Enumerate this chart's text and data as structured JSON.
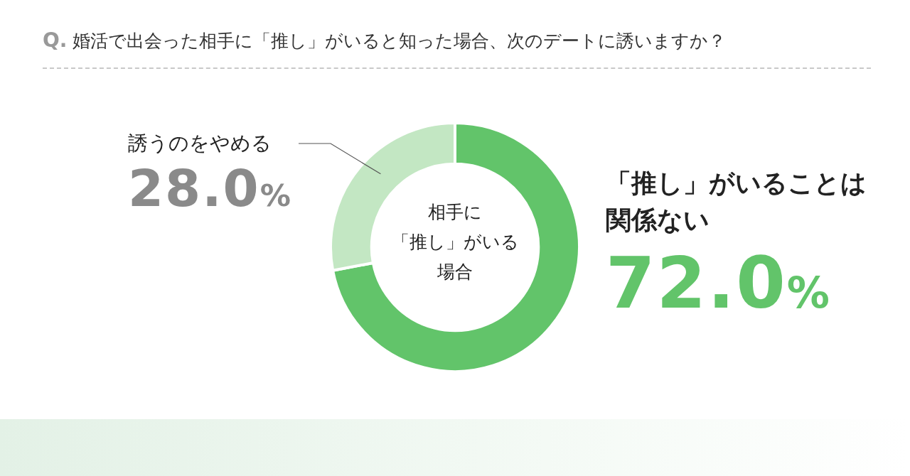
{
  "chart_data": {
    "type": "donut",
    "title": "Q. 婚活で出会った相手に「推し」がいると知った場合、次のデートに誘いますか？",
    "categories": [
      "「推し」がいることは関係ない",
      "誘うのをやめる"
    ],
    "values": [
      72.0,
      28.0
    ],
    "colors": [
      "#62c46a",
      "#c3e7c3"
    ],
    "value_labels": [
      "72.0%",
      "28.0%"
    ],
    "annotations": [
      "相手に",
      "「推し」がいる",
      "場合"
    ]
  }
}
